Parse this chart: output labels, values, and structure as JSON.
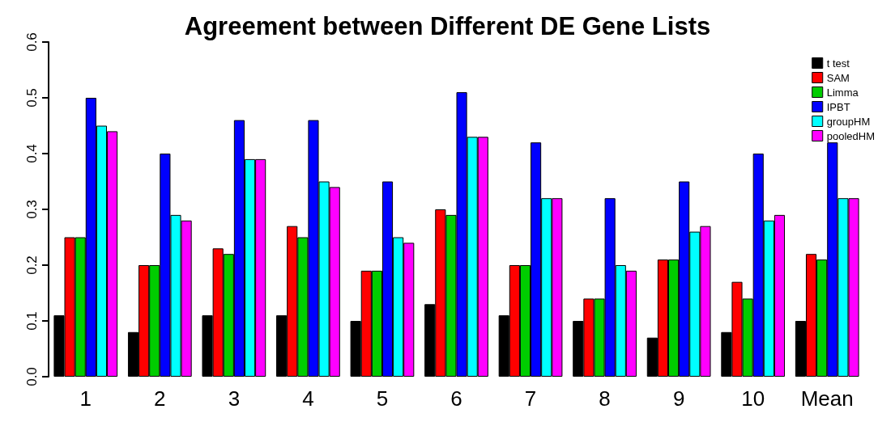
{
  "chart_data": {
    "type": "bar",
    "title": "Agreement between Different DE Gene Lists",
    "categories": [
      "1",
      "2",
      "3",
      "4",
      "5",
      "6",
      "7",
      "8",
      "9",
      "10",
      "Mean"
    ],
    "series": [
      {
        "name": "t test",
        "color": "#000000",
        "values": [
          0.11,
          0.08,
          0.11,
          0.11,
          0.1,
          0.13,
          0.11,
          0.1,
          0.07,
          0.08,
          0.1
        ]
      },
      {
        "name": "SAM",
        "color": "#ff0000",
        "values": [
          0.25,
          0.2,
          0.23,
          0.27,
          0.19,
          0.3,
          0.2,
          0.14,
          0.21,
          0.17,
          0.22
        ]
      },
      {
        "name": "Limma",
        "color": "#00cd00",
        "values": [
          0.25,
          0.2,
          0.22,
          0.25,
          0.19,
          0.29,
          0.2,
          0.14,
          0.21,
          0.14,
          0.21
        ]
      },
      {
        "name": "IPBT",
        "color": "#0000ff",
        "values": [
          0.5,
          0.4,
          0.46,
          0.46,
          0.35,
          0.51,
          0.42,
          0.32,
          0.35,
          0.4,
          0.42
        ]
      },
      {
        "name": "groupHM",
        "color": "#00ffff",
        "values": [
          0.45,
          0.29,
          0.39,
          0.35,
          0.25,
          0.43,
          0.32,
          0.2,
          0.26,
          0.28,
          0.32
        ]
      },
      {
        "name": "pooledHM",
        "color": "#ff00ff",
        "values": [
          0.44,
          0.28,
          0.39,
          0.34,
          0.24,
          0.43,
          0.32,
          0.19,
          0.27,
          0.29,
          0.32
        ]
      }
    ],
    "ylim": [
      0,
      0.6
    ],
    "yticks": [
      {
        "value": 0,
        "label": "0.0"
      },
      0.1,
      0.2,
      0.3,
      0.4,
      0.5,
      0.6
    ],
    "grid": false,
    "legend": "top right"
  }
}
